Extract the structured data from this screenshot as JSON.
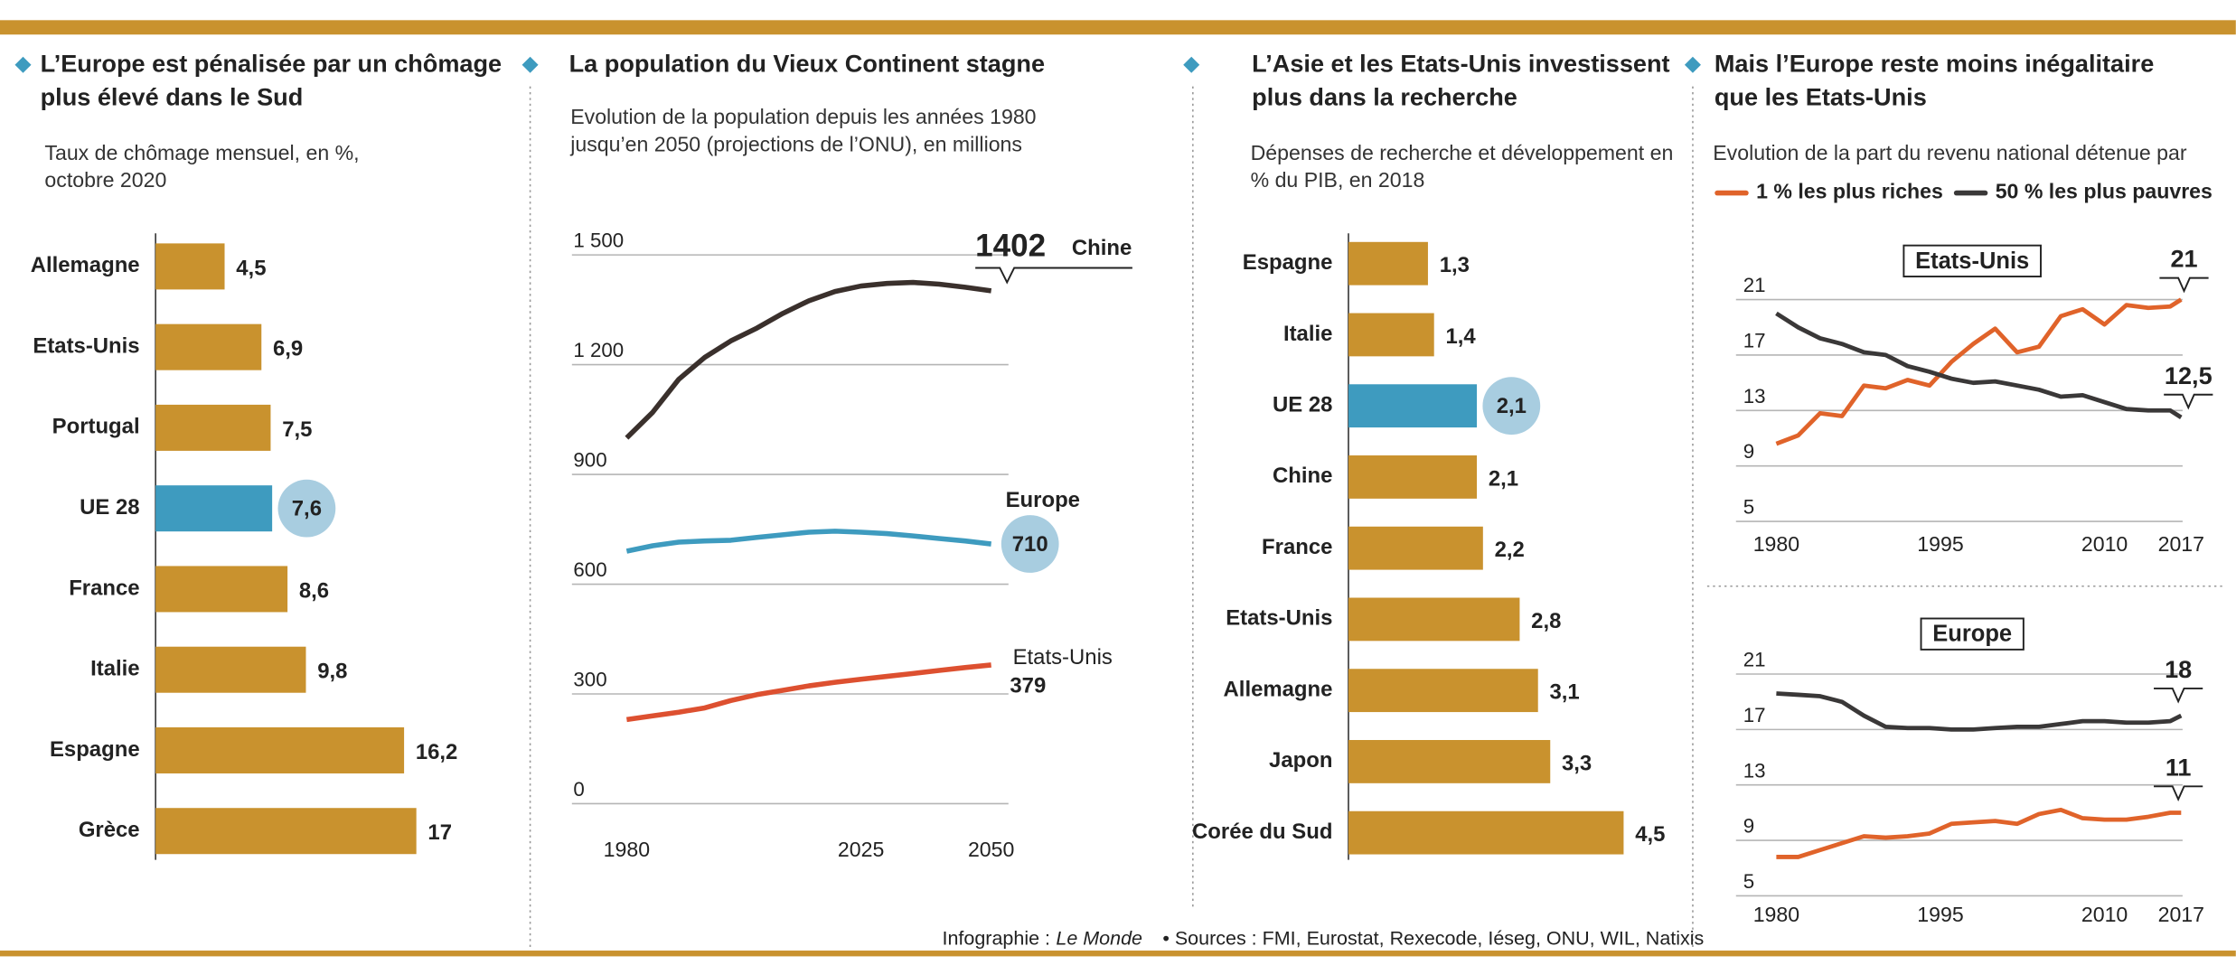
{
  "chart_data": [
    {
      "type": "barh",
      "title": "L’Europe est pénalisée par un chômage plus élevé dans le Sud",
      "subtitle": "Taux de chômage mensuel, en %, octobre 2020",
      "categories": [
        "Allemagne",
        "Etats-Unis",
        "Portugal",
        "UE 28",
        "France",
        "Italie",
        "Espagne",
        "Grèce"
      ],
      "values": [
        4.5,
        6.9,
        7.5,
        7.6,
        8.6,
        9.8,
        16.2,
        17
      ],
      "value_labels": [
        "4,5",
        "6,9",
        "7,5",
        "7,6",
        "8,6",
        "9,8",
        "16,2",
        "17"
      ],
      "color": "#c9922e",
      "highlight": "UE 28",
      "highlight_color": "#3e9bbf",
      "bubble_color": "#a8cde0"
    },
    {
      "type": "line",
      "title": "La population du Vieux Continent stagne",
      "subtitle": "Evolution de la population depuis les années 1980 jusqu’en 2050 (projections de l’ONU), en millions",
      "x": [
        1980,
        1985,
        1990,
        1995,
        2000,
        2005,
        2010,
        2015,
        2020,
        2025,
        2030,
        2035,
        2040,
        2045,
        2050
      ],
      "xlim": [
        1980,
        2050
      ],
      "xticks": [
        1980,
        2025,
        2050
      ],
      "ylim": [
        0,
        1500
      ],
      "yticks": [
        0,
        300,
        600,
        900,
        {
          "value": 1200,
          "label": "1 200"
        },
        {
          "value": 1500,
          "label": "1 500"
        }
      ],
      "grid": true,
      "bubble_color": "#a8cde0",
      "series": [
        {
          "name": "Chine",
          "color": "#3a302c",
          "values": [
            1000,
            1070,
            1160,
            1220,
            1265,
            1300,
            1340,
            1375,
            1400,
            1415,
            1422,
            1425,
            1420,
            1412,
            1402
          ]
        },
        {
          "name": "Europe",
          "color": "#3e9bbf",
          "values": [
            690,
            705,
            715,
            718,
            720,
            728,
            735,
            742,
            745,
            742,
            738,
            732,
            725,
            718,
            710
          ]
        },
        {
          "name": "Etats-Unis",
          "color": "#dd5030",
          "values": [
            230,
            240,
            250,
            262,
            282,
            298,
            310,
            322,
            332,
            340,
            348,
            356,
            364,
            372,
            379
          ]
        }
      ]
    },
    {
      "type": "barh",
      "title": "L’Asie et les Etats-Unis investissent plus dans la recherche",
      "subtitle": "Dépenses de recherche et développement en % du PIB, en 2018",
      "categories": [
        "Espagne",
        "Italie",
        "UE 28",
        "Chine",
        "France",
        "Etats-Unis",
        "Allemagne",
        "Japon",
        "Corée du Sud"
      ],
      "values": [
        1.3,
        1.4,
        2.1,
        2.1,
        2.2,
        2.8,
        3.1,
        3.3,
        4.5
      ],
      "value_labels": [
        "1,3",
        "1,4",
        "2,1",
        "2,1",
        "2,2",
        "2,8",
        "3,1",
        "3,3",
        "4,5"
      ],
      "color": "#c9922e",
      "highlight": "UE 28",
      "highlight_color": "#3e9bbf",
      "bubble_color": "#a8cde0"
    },
    {
      "type": "line",
      "title": "Mais l’Europe reste moins inégalitaire que les Etats-Unis",
      "subtitle": "Evolution de la part du revenu national détenue par",
      "label": "Etats-Unis",
      "x": [
        1980,
        1982,
        1984,
        1986,
        1988,
        1990,
        1992,
        1994,
        1996,
        1998,
        2000,
        2002,
        2004,
        2006,
        2008,
        2010,
        2012,
        2014,
        2016,
        2017
      ],
      "xlim": [
        1980,
        2017
      ],
      "xticks": [
        1980,
        1995,
        2010,
        2017
      ],
      "ylim": [
        5,
        21
      ],
      "yticks": [
        5,
        9,
        13,
        17,
        21
      ],
      "grid": true,
      "series": [
        {
          "name": "1 % les plus riches",
          "color": "#e0632a",
          "values": [
            10.6,
            11.2,
            12.8,
            12.6,
            14.8,
            14.6,
            15.2,
            14.8,
            16.5,
            17.8,
            18.9,
            17.2,
            17.6,
            19.8,
            20.3,
            19.2,
            20.6,
            20.4,
            20.5,
            21
          ]
        },
        {
          "name": "50 % les plus pauvres",
          "color": "#3a3838",
          "values": [
            20,
            19,
            18.2,
            17.8,
            17.2,
            17,
            16.2,
            15.8,
            15.3,
            15,
            15.1,
            14.8,
            14.5,
            14,
            14.1,
            13.6,
            13.1,
            13,
            13,
            12.5
          ],
          "value_labels": [
            null,
            null,
            null,
            null,
            null,
            null,
            null,
            null,
            null,
            null,
            null,
            null,
            null,
            null,
            null,
            null,
            null,
            null,
            null,
            "12,5"
          ]
        }
      ]
    },
    {
      "type": "line",
      "label": "Europe",
      "x": [
        1980,
        1982,
        1984,
        1986,
        1988,
        1990,
        1992,
        1994,
        1996,
        1998,
        2000,
        2002,
        2004,
        2006,
        2008,
        2010,
        2012,
        2014,
        2016,
        2017
      ],
      "xlim": [
        1980,
        2017
      ],
      "xticks": [
        1980,
        1995,
        2010,
        2017
      ],
      "ylim": [
        5,
        21
      ],
      "yticks": [
        5,
        9,
        13,
        17,
        21
      ],
      "grid": true,
      "series": [
        {
          "color": "#e0632a",
          "values": [
            7.8,
            7.8,
            8.3,
            8.8,
            9.3,
            9.2,
            9.3,
            9.5,
            10.2,
            10.3,
            10.4,
            10.2,
            10.9,
            11.2,
            10.6,
            10.5,
            10.5,
            10.7,
            11,
            11
          ]
        },
        {
          "color": "#3a3838",
          "values": [
            19.6,
            19.5,
            19.4,
            19,
            18,
            17.2,
            17.1,
            17.1,
            17,
            17,
            17.1,
            17.2,
            17.2,
            17.4,
            17.6,
            17.6,
            17.5,
            17.5,
            17.6,
            18
          ]
        }
      ]
    }
  ],
  "footer": {
    "credit_prefix": "Infographie :",
    "credit": "Le Monde",
    "sources": "• Sources : FMI, Eurostat, Rexecode, Iéseg, ONU, WIL, Natixis"
  }
}
